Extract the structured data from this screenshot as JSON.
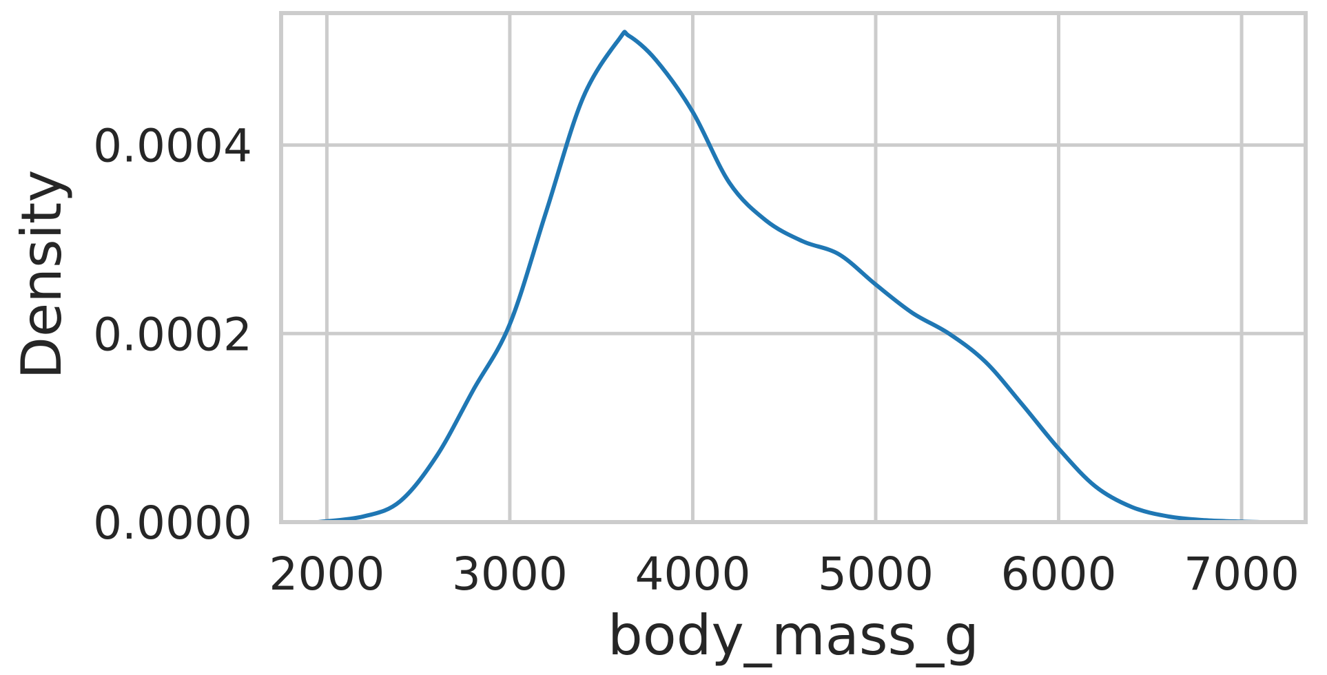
{
  "chart_data": {
    "type": "line",
    "title": "",
    "xlabel": "body_mass_g",
    "ylabel": "Density",
    "xlim": [
      1750,
      7350
    ],
    "ylim": [
      0,
      0.00054
    ],
    "x_ticks": [
      2000,
      3000,
      4000,
      5000,
      6000,
      7000
    ],
    "x_tick_labels": [
      "2000",
      "3000",
      "4000",
      "5000",
      "6000",
      "7000"
    ],
    "y_ticks": [
      0.0,
      0.0002,
      0.0004
    ],
    "y_tick_labels": [
      "0.0000",
      "0.0002",
      "0.0004"
    ],
    "grid": true,
    "series": [
      {
        "color": "#1f77b4",
        "x": [
          1950,
          2200,
          2400,
          2600,
          2800,
          3000,
          3200,
          3400,
          3600,
          3650,
          3800,
          4000,
          4200,
          4400,
          4600,
          4800,
          5000,
          5200,
          5400,
          5600,
          5800,
          6000,
          6200,
          6400,
          6600,
          6800,
          7000,
          7100
        ],
        "y": [
          0.0,
          6e-06,
          2.2e-05,
          7e-05,
          0.00014,
          0.00021,
          0.00033,
          0.00045,
          0.000513,
          0.000516,
          0.00049,
          0.000435,
          0.00036,
          0.00032,
          0.000298,
          0.000284,
          0.000252,
          0.000222,
          0.0002,
          0.00017,
          0.000125,
          7.8e-05,
          3.8e-05,
          1.6e-05,
          6e-06,
          2e-06,
          5e-07,
          0.0
        ]
      }
    ]
  }
}
